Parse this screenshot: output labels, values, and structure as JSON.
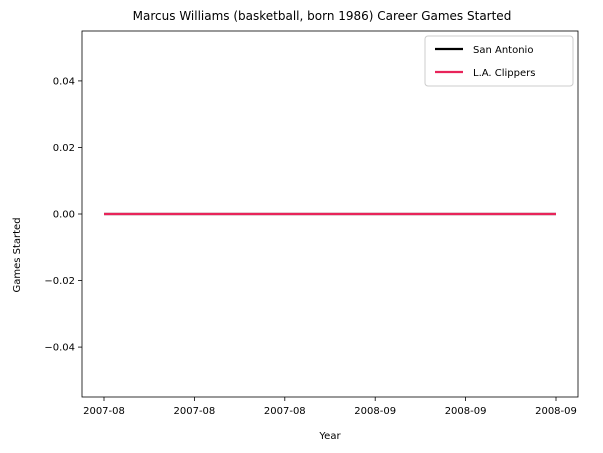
{
  "chart_data": {
    "type": "line",
    "title": "Marcus Williams (basketball, born 1986) Career Games Started",
    "xlabel": "Year",
    "ylabel": "Games Started",
    "x_tick_labels": [
      "2007-08",
      "2007-08",
      "2007-08",
      "2008-09",
      "2008-09",
      "2008-09"
    ],
    "y_ticks": [
      -0.04,
      -0.02,
      0.0,
      0.02,
      0.04
    ],
    "y_tick_labels": [
      "−0.04",
      "−0.02",
      "0.00",
      "0.02",
      "0.04"
    ],
    "ylim": [
      -0.055,
      0.055
    ],
    "x": [
      "2007-08",
      "2008-09"
    ],
    "series": [
      {
        "name": "San Antonio",
        "color": "#000000",
        "values": [
          0,
          0
        ]
      },
      {
        "name": "L.A. Clippers",
        "color": "#e8245a",
        "values": [
          0,
          0
        ]
      }
    ],
    "legend_position": "top-right",
    "grid": false
  }
}
